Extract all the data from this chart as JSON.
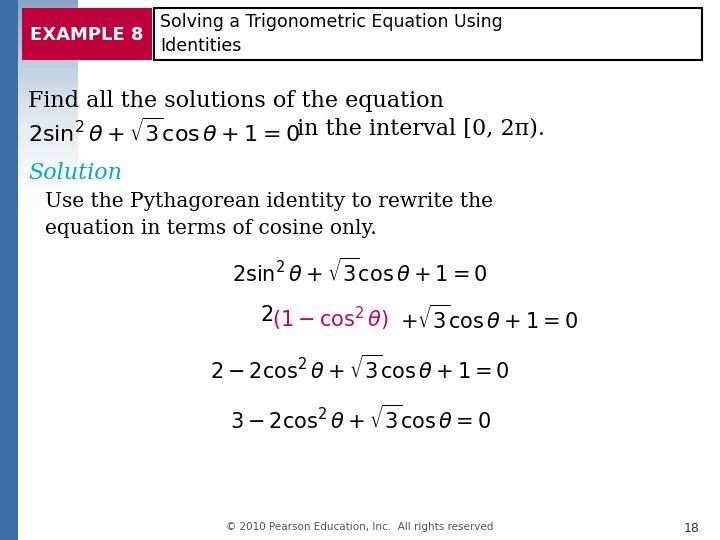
{
  "bg_color": "#e8eef5",
  "slide_bg": "#ffffff",
  "example_box_bg": "#c0003a",
  "example_box_text": "EXAMPLE 8",
  "example_box_text_color": "#ffffff",
  "title_box_text": "Solving a Trigonometric Equation Using\nIdentities",
  "title_box_text_color": "#000000",
  "title_box_border": "#000000",
  "find_text": "Find all the solutions of the equation",
  "solution_label": "Solution",
  "solution_color": "#00aacc",
  "body_text": "Use the Pythagorean identity to rewrite the\nequation in terms of cosine only.",
  "footer_text": "© 2010 Pearson Education, Inc.  All rights reserved",
  "page_number": "18",
  "left_bar_color": "#3a6ea5",
  "math_color": "#000000",
  "highlight_color": "#cc0066"
}
